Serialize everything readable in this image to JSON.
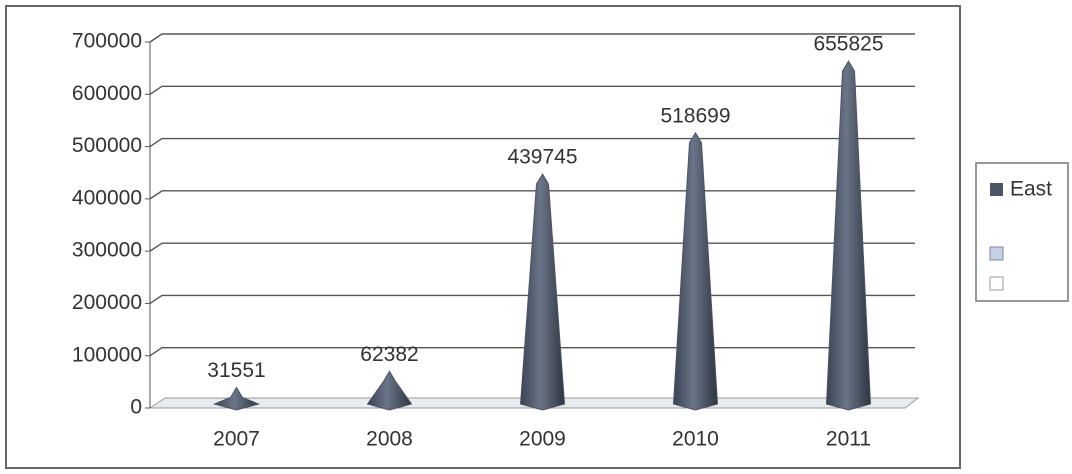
{
  "chart_data": {
    "type": "cone",
    "categories": [
      "2007",
      "2008",
      "2009",
      "2010",
      "2011"
    ],
    "series": [
      {
        "name": "East",
        "color": "#4b5566",
        "values": [
          31551,
          62382,
          439745,
          518699,
          655825
        ]
      }
    ],
    "ylim": [
      0,
      700000
    ],
    "yticks": [
      0,
      100000,
      200000,
      300000,
      400000,
      500000,
      600000,
      700000
    ],
    "grid": true,
    "legend": "right"
  }
}
